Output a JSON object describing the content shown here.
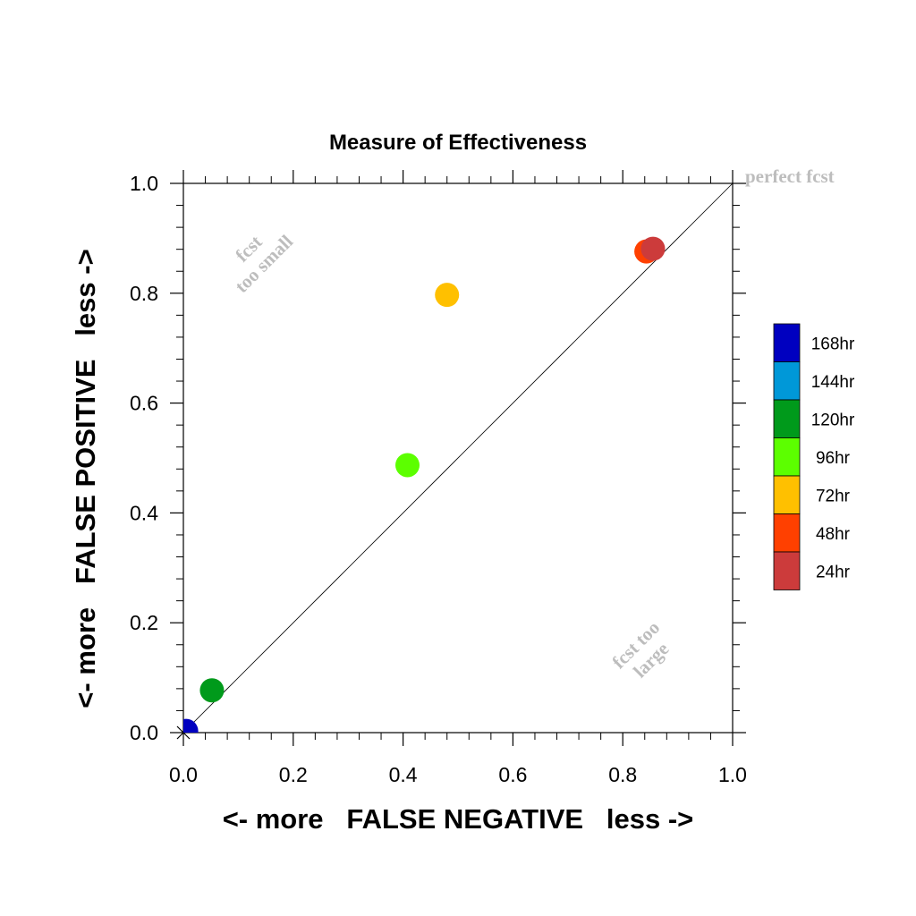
{
  "chart_data": {
    "type": "scatter",
    "title": "Measure of Effectiveness",
    "xlabel": "<- more   FALSE NEGATIVE   less ->",
    "ylabel": "<- more   FALSE POSITIVE   less ->",
    "xlim": [
      0,
      1
    ],
    "ylim": [
      0,
      1
    ],
    "xticks": [
      "0.0",
      "0.2",
      "0.4",
      "0.6",
      "0.8",
      "1.0"
    ],
    "yticks": [
      "0.0",
      "0.2",
      "0.4",
      "0.6",
      "0.8",
      "1.0"
    ],
    "reference_line": {
      "type": "diagonal",
      "from": [
        0,
        0
      ],
      "to": [
        1,
        1
      ]
    },
    "annotations": {
      "perfect": "perfect fcst",
      "too_small": [
        "fcst",
        "too small"
      ],
      "too_large": [
        "fcst too",
        "large"
      ]
    },
    "grid": false,
    "legend_position": "right",
    "series": [
      {
        "name": "168hr",
        "color": "#0000c0",
        "x": 0.005,
        "y": 0.003
      },
      {
        "name": "144hr",
        "color": "#0098d8",
        "x": null,
        "y": null
      },
      {
        "name": "120hr",
        "color": "#009a1b",
        "x": 0.052,
        "y": 0.077
      },
      {
        "name": "96hr",
        "color": "#5cff00",
        "x": 0.408,
        "y": 0.487
      },
      {
        "name": "72hr",
        "color": "#ffc000",
        "x": 0.48,
        "y": 0.797
      },
      {
        "name": "48hr",
        "color": "#ff4000",
        "x": 0.843,
        "y": 0.876
      },
      {
        "name": "24hr",
        "color": "#cc3b3b",
        "x": 0.855,
        "y": 0.881
      }
    ]
  }
}
